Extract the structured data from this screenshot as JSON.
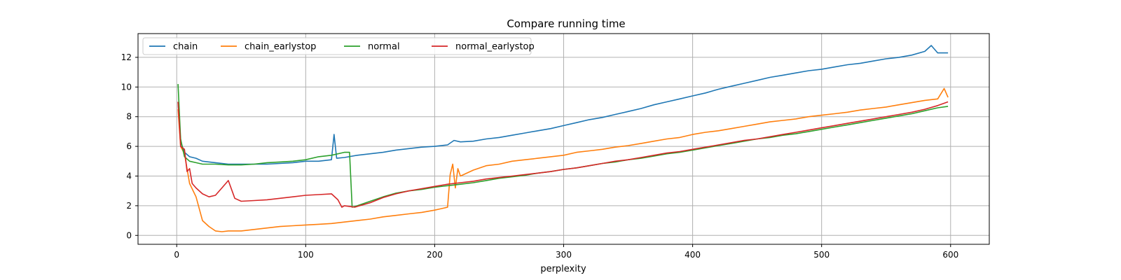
{
  "chart_data": {
    "type": "line",
    "title": "Compare running time",
    "xlabel": "perplexity",
    "ylabel": "",
    "xlim": [
      -30,
      630
    ],
    "ylim": [
      -0.6,
      13.6
    ],
    "xticks": [
      0,
      100,
      200,
      300,
      400,
      500,
      600
    ],
    "yticks": [
      0,
      2,
      4,
      6,
      8,
      10,
      12
    ],
    "grid": true,
    "legend": {
      "placement": "top-left",
      "ncol": 4
    },
    "series": [
      {
        "name": "chain",
        "color": "#1f77b4",
        "x": [
          1,
          3,
          6,
          10,
          15,
          20,
          30,
          40,
          50,
          60,
          70,
          80,
          90,
          100,
          110,
          120,
          122,
          124,
          130,
          140,
          150,
          160,
          170,
          180,
          190,
          200,
          210,
          215,
          220,
          230,
          240,
          250,
          260,
          270,
          280,
          290,
          300,
          310,
          320,
          330,
          340,
          350,
          360,
          370,
          380,
          390,
          400,
          410,
          420,
          430,
          440,
          450,
          460,
          470,
          480,
          490,
          500,
          510,
          520,
          530,
          540,
          550,
          560,
          570,
          580,
          585,
          590,
          598
        ],
        "y": [
          9.0,
          6.3,
          5.6,
          5.3,
          5.2,
          5.0,
          4.9,
          4.8,
          4.8,
          4.8,
          4.8,
          4.85,
          4.9,
          5.0,
          5.0,
          5.1,
          6.8,
          5.2,
          5.25,
          5.4,
          5.5,
          5.6,
          5.75,
          5.85,
          5.95,
          6.0,
          6.1,
          6.4,
          6.3,
          6.35,
          6.5,
          6.6,
          6.75,
          6.9,
          7.05,
          7.2,
          7.4,
          7.6,
          7.8,
          7.95,
          8.15,
          8.35,
          8.55,
          8.8,
          9.0,
          9.2,
          9.4,
          9.6,
          9.85,
          10.05,
          10.25,
          10.45,
          10.65,
          10.8,
          10.95,
          11.1,
          11.2,
          11.35,
          11.5,
          11.6,
          11.75,
          11.9,
          12.0,
          12.15,
          12.4,
          12.8,
          12.3,
          12.3
        ]
      },
      {
        "name": "chain_earlystop",
        "color": "#ff7f0e",
        "x": [
          1,
          3,
          6,
          10,
          15,
          20,
          25,
          30,
          35,
          40,
          50,
          60,
          70,
          80,
          90,
          100,
          110,
          120,
          130,
          140,
          150,
          160,
          170,
          180,
          190,
          200,
          205,
          210,
          212,
          214,
          216,
          218,
          220,
          230,
          240,
          250,
          260,
          270,
          280,
          290,
          300,
          310,
          320,
          330,
          340,
          350,
          360,
          370,
          380,
          390,
          400,
          410,
          420,
          430,
          440,
          450,
          460,
          470,
          480,
          490,
          500,
          510,
          520,
          530,
          540,
          550,
          560,
          570,
          580,
          590,
          595,
          598
        ],
        "y": [
          8.5,
          6.0,
          5.5,
          3.5,
          2.6,
          1.0,
          0.6,
          0.3,
          0.25,
          0.3,
          0.3,
          0.4,
          0.5,
          0.6,
          0.65,
          0.7,
          0.75,
          0.8,
          0.9,
          1.0,
          1.1,
          1.25,
          1.35,
          1.45,
          1.55,
          1.7,
          1.8,
          1.9,
          4.1,
          4.8,
          3.2,
          4.5,
          4.0,
          4.4,
          4.7,
          4.8,
          5.0,
          5.1,
          5.2,
          5.3,
          5.4,
          5.6,
          5.7,
          5.8,
          5.95,
          6.05,
          6.2,
          6.35,
          6.5,
          6.6,
          6.8,
          6.95,
          7.05,
          7.2,
          7.35,
          7.5,
          7.65,
          7.75,
          7.85,
          8.0,
          8.1,
          8.2,
          8.3,
          8.45,
          8.55,
          8.65,
          8.8,
          8.95,
          9.1,
          9.2,
          9.9,
          9.3
        ]
      },
      {
        "name": "normal",
        "color": "#2ca02c",
        "x": [
          1,
          3,
          6,
          10,
          15,
          20,
          30,
          40,
          50,
          60,
          70,
          80,
          90,
          100,
          110,
          120,
          130,
          134,
          136,
          140,
          150,
          160,
          170,
          180,
          190,
          200,
          210,
          220,
          230,
          240,
          250,
          260,
          270,
          280,
          290,
          300,
          310,
          320,
          330,
          340,
          350,
          360,
          370,
          380,
          390,
          400,
          410,
          420,
          430,
          440,
          450,
          460,
          470,
          480,
          490,
          500,
          510,
          520,
          530,
          540,
          550,
          560,
          570,
          580,
          590,
          598
        ],
        "y": [
          10.2,
          6.5,
          5.3,
          5.0,
          4.9,
          4.8,
          4.8,
          4.75,
          4.75,
          4.8,
          4.9,
          4.95,
          5.0,
          5.1,
          5.3,
          5.4,
          5.6,
          5.6,
          1.9,
          2.0,
          2.3,
          2.6,
          2.85,
          3.0,
          3.1,
          3.25,
          3.35,
          3.45,
          3.55,
          3.7,
          3.85,
          3.95,
          4.05,
          4.2,
          4.3,
          4.45,
          4.55,
          4.7,
          4.85,
          4.95,
          5.1,
          5.2,
          5.35,
          5.5,
          5.6,
          5.75,
          5.9,
          6.05,
          6.2,
          6.35,
          6.5,
          6.6,
          6.75,
          6.85,
          7.0,
          7.15,
          7.3,
          7.45,
          7.6,
          7.75,
          7.9,
          8.05,
          8.2,
          8.4,
          8.6,
          8.7
        ]
      },
      {
        "name": "normal_earlystop",
        "color": "#d62728",
        "x": [
          1,
          3,
          6,
          8,
          10,
          12,
          15,
          20,
          25,
          30,
          35,
          40,
          45,
          50,
          60,
          70,
          80,
          90,
          100,
          110,
          120,
          125,
          128,
          130,
          134,
          138,
          140,
          150,
          160,
          170,
          180,
          190,
          200,
          210,
          220,
          230,
          240,
          250,
          260,
          270,
          280,
          290,
          300,
          310,
          320,
          330,
          340,
          350,
          360,
          370,
          380,
          390,
          400,
          410,
          420,
          430,
          440,
          450,
          460,
          470,
          480,
          490,
          500,
          510,
          520,
          530,
          540,
          550,
          560,
          570,
          580,
          590,
          598
        ],
        "y": [
          9.0,
          6.0,
          5.8,
          4.3,
          4.5,
          3.5,
          3.2,
          2.8,
          2.6,
          2.7,
          3.2,
          3.7,
          2.5,
          2.3,
          2.35,
          2.4,
          2.5,
          2.6,
          2.7,
          2.75,
          2.8,
          2.4,
          1.9,
          2.0,
          1.95,
          1.9,
          1.95,
          2.2,
          2.55,
          2.8,
          3.0,
          3.15,
          3.3,
          3.45,
          3.55,
          3.65,
          3.8,
          3.9,
          4.0,
          4.1,
          4.2,
          4.3,
          4.45,
          4.55,
          4.7,
          4.85,
          5.0,
          5.1,
          5.25,
          5.4,
          5.55,
          5.65,
          5.8,
          5.95,
          6.1,
          6.25,
          6.4,
          6.5,
          6.65,
          6.8,
          6.95,
          7.1,
          7.25,
          7.4,
          7.55,
          7.7,
          7.85,
          8.0,
          8.15,
          8.3,
          8.5,
          8.75,
          9.0
        ]
      }
    ]
  }
}
